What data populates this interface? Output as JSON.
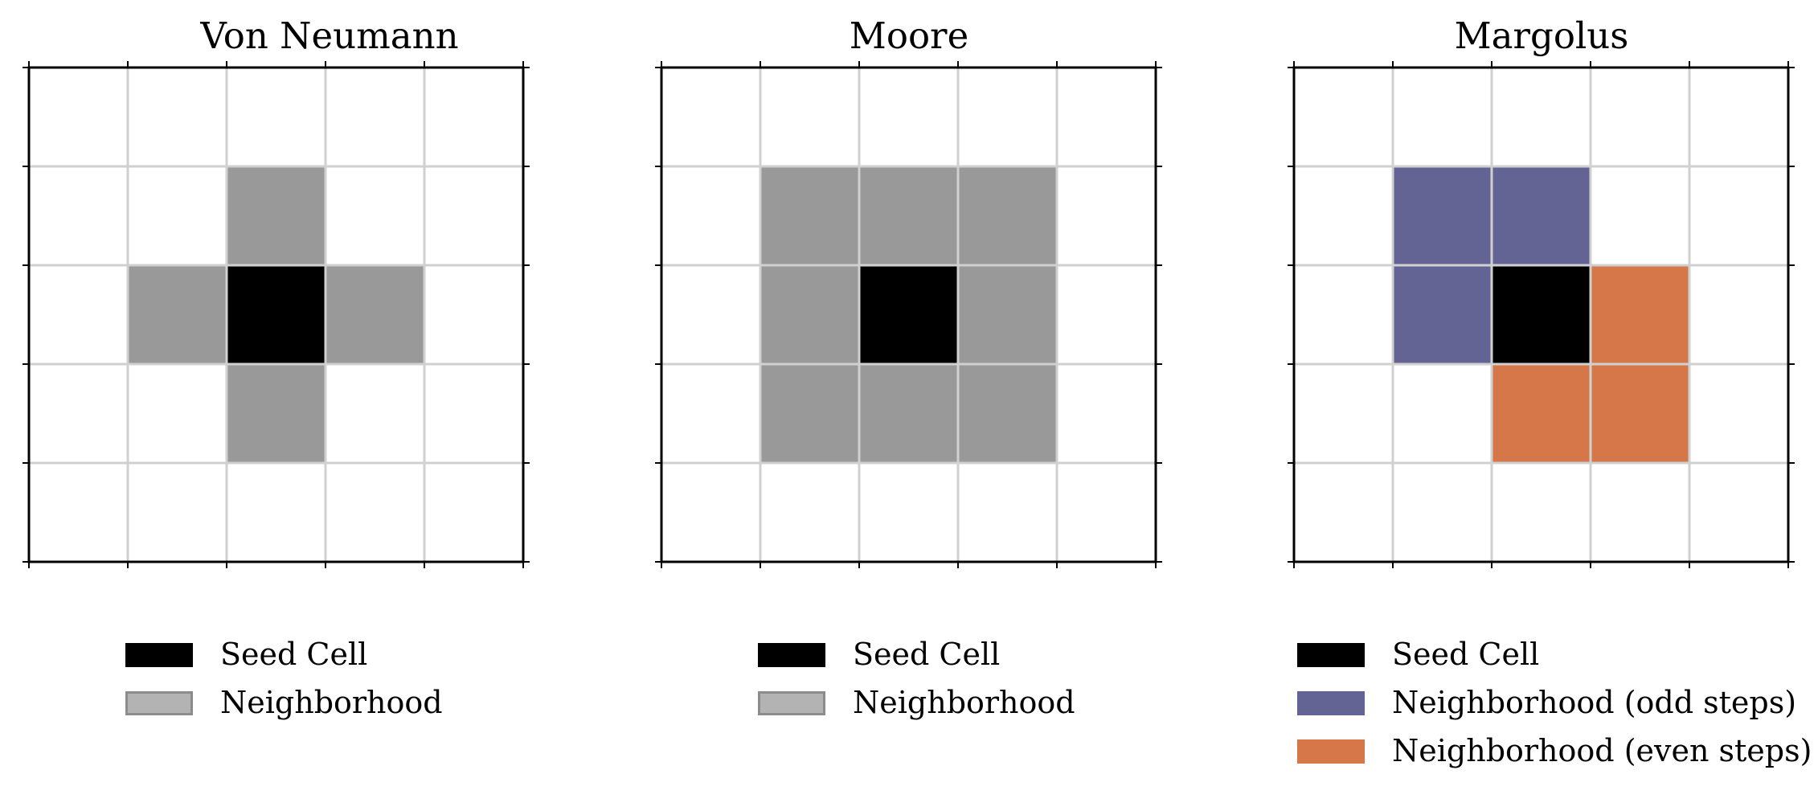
{
  "colors": {
    "seed": "#000000",
    "neighborhood": "#999999",
    "neighborhood_swatch": "#b3b3b3",
    "odd": "#646494",
    "even": "#d57749",
    "grid_line": "#d0d0d0",
    "frame": "#000000"
  },
  "panels": [
    {
      "title": "Von Neumann",
      "grid_size": 5,
      "seed": [
        2,
        2
      ],
      "neighborhoods": [
        {
          "color_key": "neighborhood",
          "cells": [
            [
              2,
              1
            ],
            [
              1,
              2
            ],
            [
              3,
              2
            ],
            [
              2,
              3
            ]
          ]
        }
      ],
      "legend": [
        {
          "label": "Seed Cell",
          "color_key": "seed"
        },
        {
          "label": "Neighborhood",
          "color_key": "neighborhood_swatch"
        }
      ]
    },
    {
      "title": "Moore",
      "grid_size": 5,
      "seed": [
        2,
        2
      ],
      "neighborhoods": [
        {
          "color_key": "neighborhood",
          "cells": [
            [
              1,
              1
            ],
            [
              2,
              1
            ],
            [
              3,
              1
            ],
            [
              1,
              2
            ],
            [
              3,
              2
            ],
            [
              1,
              3
            ],
            [
              2,
              3
            ],
            [
              3,
              3
            ]
          ]
        }
      ],
      "legend": [
        {
          "label": "Seed Cell",
          "color_key": "seed"
        },
        {
          "label": "Neighborhood",
          "color_key": "neighborhood_swatch"
        }
      ]
    },
    {
      "title": "Margolus",
      "grid_size": 5,
      "seed": [
        2,
        2
      ],
      "neighborhoods": [
        {
          "color_key": "odd",
          "cells": [
            [
              1,
              1
            ],
            [
              2,
              1
            ],
            [
              1,
              2
            ]
          ]
        },
        {
          "color_key": "even",
          "cells": [
            [
              3,
              2
            ],
            [
              2,
              3
            ],
            [
              3,
              3
            ]
          ]
        }
      ],
      "legend": [
        {
          "label": "Seed Cell",
          "color_key": "seed"
        },
        {
          "label": "Neighborhood (odd steps)",
          "color_key": "odd"
        },
        {
          "label": "Neighborhood (even steps)",
          "color_key": "even"
        }
      ]
    }
  ]
}
